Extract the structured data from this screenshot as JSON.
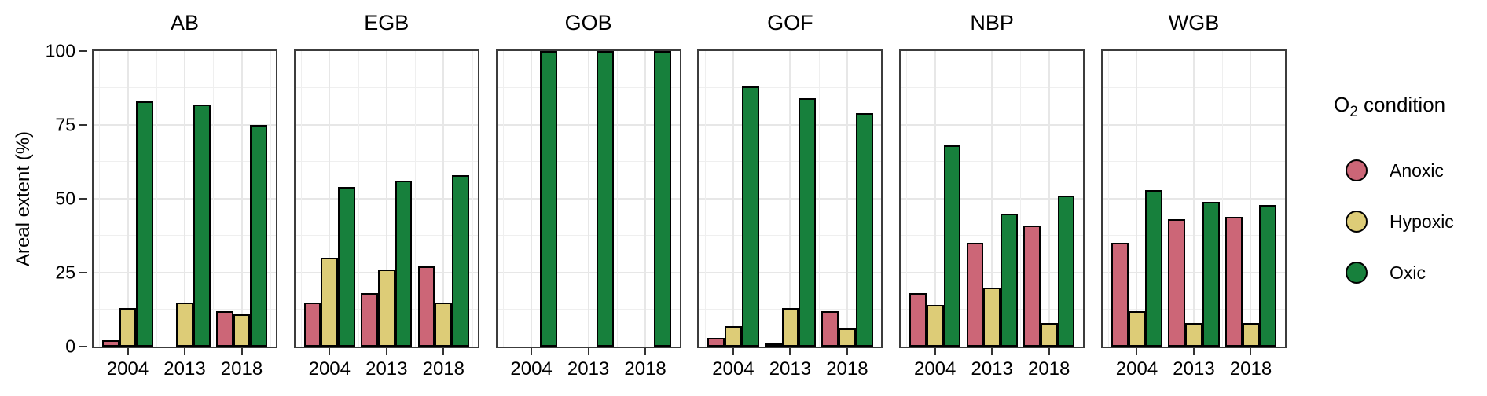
{
  "y_axis": {
    "title": "Areal extent (%)",
    "ticks": [
      {
        "label": "100",
        "v": 100
      },
      {
        "label": "75",
        "v": 75
      },
      {
        "label": "50",
        "v": 50
      },
      {
        "label": "25",
        "v": 25
      },
      {
        "label": "0",
        "v": 0
      }
    ]
  },
  "legend": {
    "title_o": "O",
    "title_sub": "2",
    "title_rest": "condition",
    "items": [
      {
        "label": "Anoxic",
        "color": "#CC6677"
      },
      {
        "label": "Hypoxic",
        "color": "#DDCC77"
      },
      {
        "label": "Oxic",
        "color": "#17803C"
      }
    ]
  },
  "chart_data": {
    "type": "bar",
    "title": "",
    "xlabel": "",
    "ylabel": "Areal extent (%)",
    "ylim": [
      0,
      100
    ],
    "grid": true,
    "legend_position": "right",
    "legend_title": "O2 condition",
    "categories": [
      "2004",
      "2013",
      "2018"
    ],
    "colors": {
      "Anoxic": "#CC6677",
      "Hypoxic": "#DDCC77",
      "Oxic": "#17803C"
    },
    "facets": [
      {
        "name": "AB",
        "series": [
          {
            "name": "Anoxic",
            "values": [
              2,
              0,
              12
            ]
          },
          {
            "name": "Hypoxic",
            "values": [
              13,
              15,
              11
            ]
          },
          {
            "name": "Oxic",
            "values": [
              83,
              82,
              75
            ]
          }
        ]
      },
      {
        "name": "EGB",
        "series": [
          {
            "name": "Anoxic",
            "values": [
              15,
              18,
              27
            ]
          },
          {
            "name": "Hypoxic",
            "values": [
              30,
              26,
              15
            ]
          },
          {
            "name": "Oxic",
            "values": [
              54,
              56,
              58
            ]
          }
        ]
      },
      {
        "name": "GOB",
        "series": [
          {
            "name": "Anoxic",
            "values": [
              0,
              0,
              0
            ]
          },
          {
            "name": "Hypoxic",
            "values": [
              0,
              0,
              0
            ]
          },
          {
            "name": "Oxic",
            "values": [
              100,
              100,
              100
            ]
          }
        ]
      },
      {
        "name": "GOF",
        "series": [
          {
            "name": "Anoxic",
            "values": [
              3,
              1,
              12
            ]
          },
          {
            "name": "Hypoxic",
            "values": [
              7,
              13,
              6
            ]
          },
          {
            "name": "Oxic",
            "values": [
              88,
              84,
              79
            ]
          }
        ]
      },
      {
        "name": "NBP",
        "series": [
          {
            "name": "Anoxic",
            "values": [
              18,
              35,
              41
            ]
          },
          {
            "name": "Hypoxic",
            "values": [
              14,
              20,
              8
            ]
          },
          {
            "name": "Oxic",
            "values": [
              68,
              45,
              51
            ]
          }
        ]
      },
      {
        "name": "WGB",
        "series": [
          {
            "name": "Anoxic",
            "values": [
              35,
              43,
              44
            ]
          },
          {
            "name": "Hypoxic",
            "values": [
              12,
              8,
              8
            ]
          },
          {
            "name": "Oxic",
            "values": [
              53,
              49,
              48
            ]
          }
        ]
      }
    ]
  }
}
